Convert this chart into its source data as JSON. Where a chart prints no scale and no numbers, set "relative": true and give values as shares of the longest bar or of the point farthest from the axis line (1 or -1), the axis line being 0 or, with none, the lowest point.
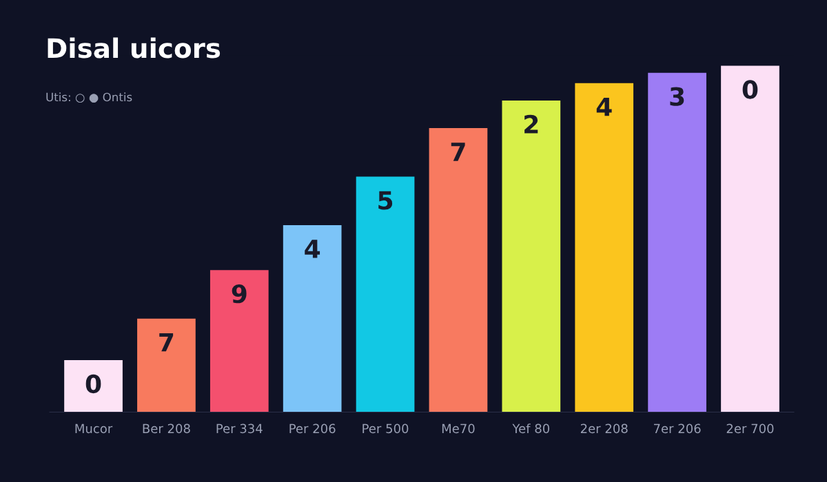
{
  "chart_data": {
    "type": "bar",
    "title": "Disal uicors",
    "relative": true,
    "annotations": [
      "Utis: ○ ● Ontis",
      {
        "text": "0",
        "x": "Mucor",
        "y": 0.15
      },
      {
        "text": "7",
        "x": "Ber 208",
        "y": 0.27
      },
      {
        "text": "9",
        "x": "Per 334",
        "y": 0.41
      },
      {
        "text": "4",
        "x": "Per 206",
        "y": 0.54
      },
      {
        "text": "5",
        "x": "Per 500",
        "y": 0.68
      },
      {
        "text": "7",
        "x": "Me70",
        "y": 0.82
      },
      {
        "text": "2",
        "x": "Yef 80",
        "y": 0.9
      },
      {
        "text": "4",
        "x": "2er 208",
        "y": 0.95
      },
      {
        "text": "3",
        "x": "7er 206",
        "y": 0.98
      },
      {
        "text": "0",
        "x": "2er 700",
        "y": 1.0
      }
    ],
    "categories": [
      "Mucor",
      "Ber 208",
      "Per 334",
      "Per 206",
      "Per 500",
      "Me70",
      "Yef 80",
      "2er 208",
      "7er 206",
      "2er 700"
    ],
    "values": [
      0.15,
      0.27,
      0.41,
      0.54,
      0.68,
      0.82,
      0.9,
      0.95,
      0.98,
      1.0
    ],
    "colors": [
      "#fde3f5",
      "#f87a5e",
      "#f4506e",
      "#7cc4f8",
      "#12c8e4",
      "#f87a60",
      "#d8f04a",
      "#fbc51e",
      "#9d7cf5",
      "#fce0f5"
    ],
    "grid": false,
    "legend": false
  }
}
